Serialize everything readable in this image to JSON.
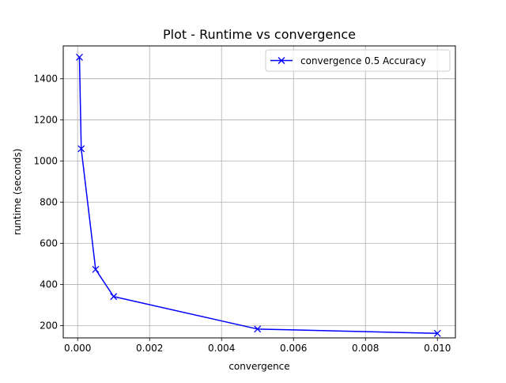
{
  "chart_data": {
    "type": "line",
    "title": "Plot - Runtime vs convergence",
    "xlabel": "convergence",
    "ylabel": "runtime (seconds)",
    "xlim": [
      -0.0004,
      0.0105
    ],
    "ylim": [
      140,
      1560
    ],
    "x_ticks": [
      0.0,
      0.002,
      0.004,
      0.006,
      0.008,
      0.01
    ],
    "x_tick_labels": [
      "0.000",
      "0.002",
      "0.004",
      "0.006",
      "0.008",
      "0.010"
    ],
    "y_ticks": [
      200,
      400,
      600,
      800,
      1000,
      1200,
      1400
    ],
    "y_tick_labels": [
      "200",
      "400",
      "600",
      "800",
      "1000",
      "1200",
      "1400"
    ],
    "grid": true,
    "legend_position": "top-right",
    "series": [
      {
        "name": "convergence 0.5 Accuracy",
        "color": "#0000ff",
        "marker": "x",
        "x": [
          5e-05,
          0.0001,
          0.0005,
          0.001,
          0.005,
          0.01
        ],
        "y": [
          1505,
          1060,
          473,
          341,
          183,
          162
        ]
      }
    ]
  }
}
